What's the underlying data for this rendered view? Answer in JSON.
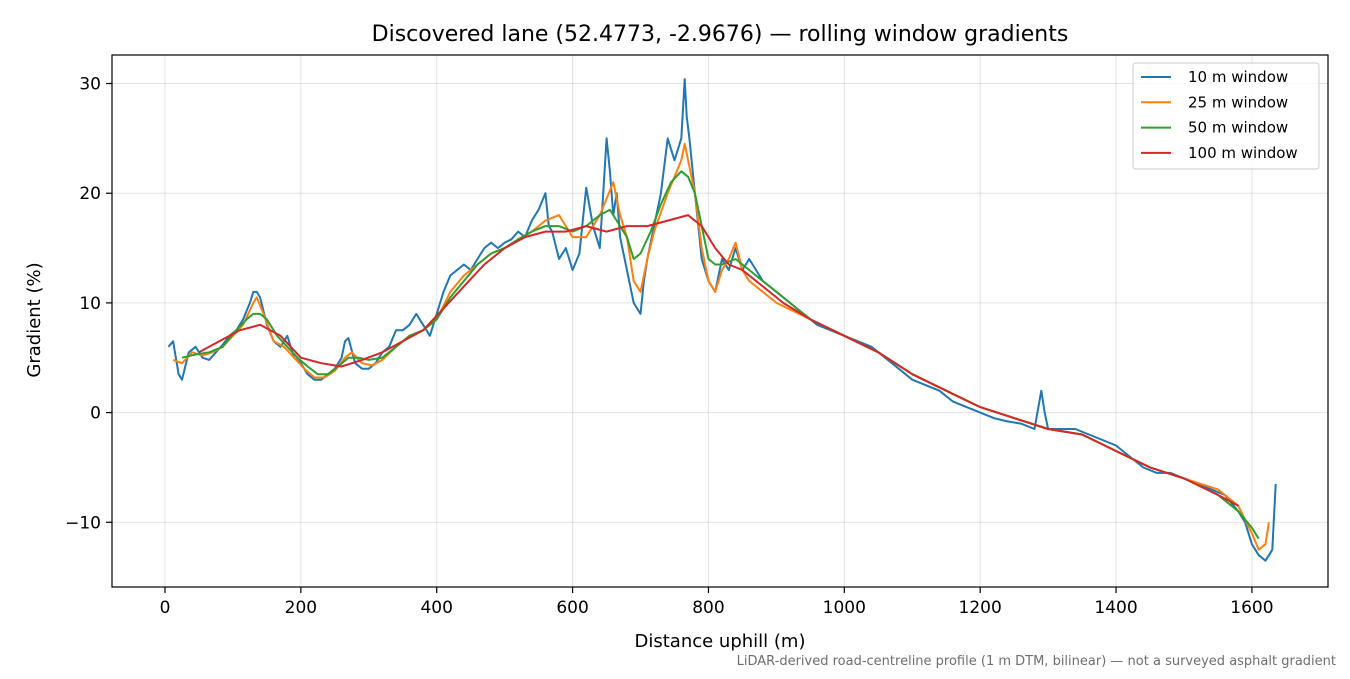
{
  "chart_data": {
    "type": "line",
    "title": "Discovered lane (52.4773, -2.9676) — rolling window gradients",
    "xlabel": "Distance uphill (m)",
    "ylabel": "Gradient (%)",
    "footnote": "LiDAR-derived road-centreline profile (1 m DTM, bilinear) — not a surveyed asphalt gradient",
    "xlim": [
      -78,
      1712
    ],
    "ylim": [
      -15.9,
      32.6
    ],
    "xticks": [
      0,
      200,
      400,
      600,
      800,
      1000,
      1200,
      1400,
      1600
    ],
    "yticks": [
      -10,
      0,
      10,
      20,
      30
    ],
    "ytick_labels": [
      "−10",
      "0",
      "10",
      "20",
      "30"
    ],
    "grid": true,
    "legend": "top-right",
    "series": [
      {
        "name": "10 m window",
        "color": "#1f77b4",
        "x": [
          5,
          12,
          20,
          25,
          35,
          45,
          55,
          65,
          75,
          85,
          95,
          105,
          115,
          125,
          130,
          135,
          140,
          150,
          160,
          170,
          180,
          190,
          200,
          210,
          220,
          230,
          240,
          250,
          260,
          265,
          270,
          280,
          290,
          300,
          310,
          320,
          330,
          340,
          350,
          360,
          370,
          380,
          390,
          400,
          410,
          420,
          430,
          440,
          450,
          460,
          470,
          480,
          490,
          500,
          510,
          520,
          530,
          540,
          550,
          560,
          565,
          570,
          580,
          590,
          600,
          610,
          620,
          630,
          640,
          650,
          655,
          660,
          665,
          670,
          675,
          680,
          690,
          700,
          705,
          710,
          720,
          730,
          740,
          750,
          760,
          765,
          768,
          772,
          780,
          790,
          800,
          810,
          820,
          830,
          840,
          850,
          860,
          870,
          880,
          890,
          900,
          910,
          920,
          940,
          960,
          980,
          1000,
          1020,
          1040,
          1060,
          1080,
          1100,
          1120,
          1140,
          1160,
          1180,
          1200,
          1220,
          1240,
          1260,
          1280,
          1290,
          1295,
          1300,
          1320,
          1340,
          1360,
          1380,
          1400,
          1420,
          1440,
          1460,
          1480,
          1500,
          1520,
          1540,
          1560,
          1580,
          1590,
          1600,
          1610,
          1620,
          1630,
          1635
        ],
        "y": [
          6.0,
          6.5,
          3.5,
          3.0,
          5.5,
          6.0,
          5.0,
          4.8,
          5.5,
          6.2,
          7.0,
          7.5,
          8.5,
          10.0,
          11.0,
          11.0,
          10.5,
          8.0,
          6.5,
          6.0,
          7.0,
          5.0,
          4.5,
          3.5,
          3.0,
          3.0,
          3.5,
          4.0,
          5.0,
          6.5,
          6.8,
          4.5,
          4.0,
          4.0,
          4.5,
          5.5,
          6.0,
          7.5,
          7.5,
          8.0,
          9.0,
          8.0,
          7.0,
          9.0,
          11.0,
          12.5,
          13.0,
          13.5,
          13.0,
          14.0,
          15.0,
          15.5,
          15.0,
          15.5,
          15.8,
          16.5,
          16.0,
          17.5,
          18.5,
          20.0,
          17.0,
          16.5,
          14.0,
          15.0,
          13.0,
          14.5,
          20.5,
          17.0,
          15.0,
          25.0,
          22.0,
          18.0,
          20.0,
          16.0,
          14.5,
          13.0,
          10.0,
          9.0,
          12.0,
          14.0,
          17.0,
          20.0,
          25.0,
          23.0,
          25.0,
          30.4,
          27.0,
          25.0,
          20.0,
          14.0,
          12.0,
          11.0,
          14.0,
          13.0,
          15.0,
          13.0,
          14.0,
          13.0,
          12.0,
          11.5,
          11.0,
          10.5,
          10.0,
          9.0,
          8.0,
          7.5,
          7.0,
          6.5,
          6.0,
          5.0,
          4.0,
          3.0,
          2.5,
          2.0,
          1.0,
          0.5,
          0.0,
          -0.5,
          -0.8,
          -1.0,
          -1.5,
          2.0,
          0.0,
          -1.5,
          -1.5,
          -1.5,
          -2.0,
          -2.5,
          -3.0,
          -4.0,
          -5.0,
          -5.5,
          -5.5,
          -6.0,
          -6.5,
          -7.0,
          -7.5,
          -9.0,
          -10.0,
          -12.0,
          -13.0,
          -13.5,
          -12.5,
          -6.5
        ]
      },
      {
        "name": "25 m window",
        "color": "#ff7f0e",
        "x": [
          12,
          25,
          40,
          55,
          70,
          85,
          100,
          115,
          130,
          135,
          145,
          160,
          175,
          190,
          205,
          220,
          235,
          250,
          265,
          275,
          290,
          305,
          320,
          340,
          360,
          380,
          400,
          420,
          440,
          460,
          480,
          500,
          520,
          540,
          560,
          580,
          600,
          620,
          640,
          660,
          670,
          680,
          690,
          700,
          710,
          720,
          740,
          760,
          765,
          770,
          780,
          790,
          800,
          810,
          820,
          830,
          840,
          850,
          860,
          880,
          900,
          950,
          1000,
          1050,
          1100,
          1150,
          1200,
          1250,
          1300,
          1350,
          1400,
          1450,
          1500,
          1550,
          1580,
          1600,
          1610,
          1620,
          1625
        ],
        "y": [
          4.8,
          4.5,
          5.5,
          5.2,
          5.5,
          6.0,
          7.0,
          8.0,
          10.0,
          10.5,
          9.0,
          6.5,
          6.0,
          5.0,
          4.0,
          3.2,
          3.2,
          3.8,
          5.0,
          5.5,
          4.5,
          4.3,
          4.8,
          6.0,
          7.0,
          7.5,
          8.5,
          11.0,
          12.5,
          13.5,
          14.5,
          15.0,
          15.8,
          16.5,
          17.5,
          18.0,
          16.0,
          16.0,
          18.0,
          21.0,
          18.0,
          16.0,
          12.0,
          11.0,
          14.0,
          16.5,
          20.0,
          23.0,
          24.5,
          23.0,
          20.0,
          15.0,
          12.0,
          11.0,
          13.0,
          14.0,
          15.5,
          13.0,
          12.0,
          11.0,
          10.0,
          8.5,
          7.0,
          5.5,
          3.5,
          2.0,
          0.5,
          -0.5,
          -1.5,
          -2.0,
          -3.5,
          -5.0,
          -6.0,
          -7.0,
          -8.5,
          -11.0,
          -12.5,
          -12.0,
          -10.0
        ]
      },
      {
        "name": "50 m window",
        "color": "#2ca02c",
        "x": [
          25,
          45,
          65,
          85,
          105,
          120,
          130,
          140,
          150,
          165,
          180,
          195,
          210,
          225,
          240,
          255,
          270,
          285,
          300,
          320,
          340,
          360,
          380,
          400,
          420,
          440,
          460,
          480,
          500,
          520,
          540,
          560,
          580,
          600,
          620,
          640,
          655,
          665,
          680,
          690,
          700,
          715,
          730,
          745,
          760,
          770,
          780,
          790,
          800,
          810,
          820,
          840,
          860,
          880,
          900,
          950,
          1000,
          1050,
          1100,
          1150,
          1200,
          1250,
          1300,
          1350,
          1400,
          1450,
          1500,
          1550,
          1580,
          1600,
          1610
        ],
        "y": [
          5.0,
          5.3,
          5.5,
          6.0,
          7.5,
          8.5,
          9.0,
          9.0,
          8.5,
          7.0,
          6.0,
          5.0,
          4.2,
          3.5,
          3.5,
          4.2,
          5.0,
          5.0,
          4.8,
          5.0,
          6.0,
          7.0,
          7.5,
          8.5,
          10.5,
          12.0,
          13.5,
          14.5,
          15.0,
          15.8,
          16.5,
          17.0,
          17.0,
          16.5,
          17.0,
          18.0,
          18.5,
          17.5,
          16.0,
          14.0,
          14.5,
          16.5,
          19.0,
          21.0,
          22.0,
          21.5,
          20.0,
          17.0,
          14.0,
          13.5,
          13.5,
          14.0,
          13.0,
          12.0,
          11.0,
          8.5,
          7.0,
          5.5,
          3.5,
          2.0,
          0.5,
          -0.5,
          -1.5,
          -2.0,
          -3.5,
          -5.0,
          -6.0,
          -7.5,
          -9.0,
          -10.5,
          -11.5
        ]
      },
      {
        "name": "100 m window",
        "color": "#d62728",
        "x": [
          50,
          80,
          110,
          140,
          170,
          200,
          230,
          260,
          290,
          320,
          350,
          380,
          410,
          440,
          470,
          500,
          530,
          560,
          590,
          620,
          650,
          680,
          710,
          740,
          770,
          790,
          810,
          830,
          850,
          880,
          910,
          950,
          1000,
          1050,
          1100,
          1150,
          1200,
          1250,
          1300,
          1350,
          1400,
          1450,
          1500,
          1550,
          1580
        ],
        "y": [
          5.5,
          6.5,
          7.5,
          8.0,
          7.0,
          5.0,
          4.5,
          4.2,
          4.8,
          5.5,
          6.5,
          7.5,
          9.5,
          11.5,
          13.5,
          15.0,
          16.0,
          16.5,
          16.5,
          17.0,
          16.5,
          17.0,
          17.0,
          17.5,
          18.0,
          17.0,
          15.0,
          13.5,
          13.0,
          11.5,
          10.0,
          8.5,
          7.0,
          5.5,
          3.5,
          2.0,
          0.5,
          -0.5,
          -1.5,
          -2.0,
          -3.5,
          -5.0,
          -6.0,
          -7.5,
          -8.5
        ]
      }
    ]
  }
}
